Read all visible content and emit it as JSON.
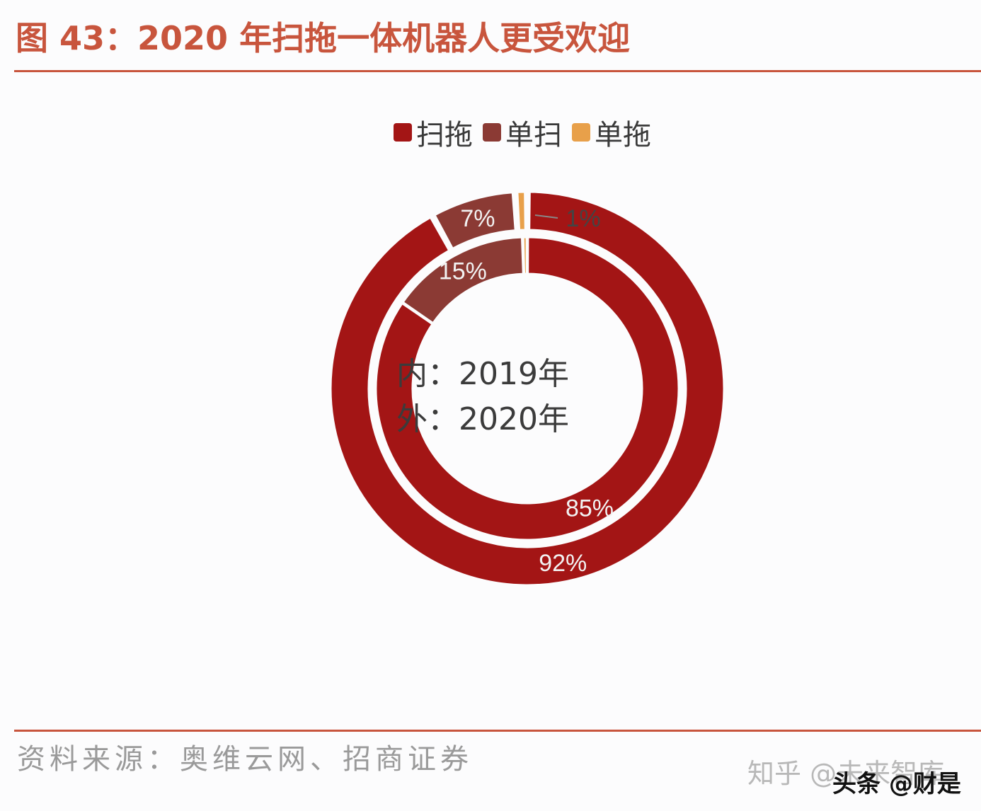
{
  "title": "图 43：2020 年扫拖一体机器人更受欢迎",
  "source": "资料来源：奥维云网、招商证券",
  "watermark": {
    "zhihu": "知乎 @未来智库",
    "toutiao": "头条 @财是"
  },
  "center_label": {
    "inner": "内：2019年",
    "outer": "外：2020年"
  },
  "colors": {
    "accent": "#c8553d",
    "saotuo": "#a31515",
    "dansao": "#8b3a34",
    "dantuo": "#e8a04a"
  },
  "chart_data": {
    "type": "pie",
    "subtype": "nested-donut",
    "legend": [
      "扫拖",
      "单扫",
      "单拖"
    ],
    "legend_position": "top",
    "series": [
      {
        "name": "内：2019年",
        "ring": "inner",
        "values": [
          85,
          15,
          0.5
        ],
        "labels": [
          "85%",
          "15%",
          ""
        ]
      },
      {
        "name": "外：2020年",
        "ring": "outer",
        "values": [
          92,
          7,
          1
        ],
        "labels": [
          "92%",
          "7%",
          "1%"
        ]
      }
    ]
  }
}
